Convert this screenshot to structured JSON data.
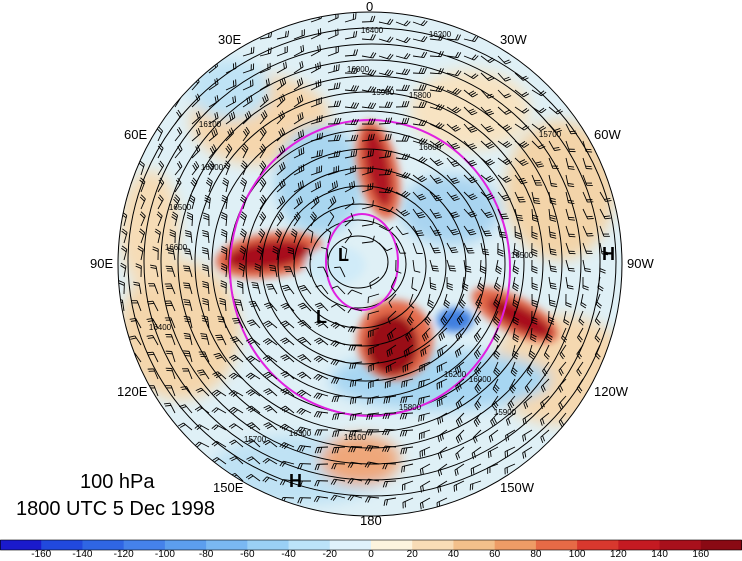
{
  "map": {
    "projection": "polar stereographic (northern hemisphere)",
    "longitude_labels": {
      "top": "0",
      "bottom": "180",
      "upper_left": "30E",
      "upper_right": "30W",
      "mid_upper_left": "60E",
      "mid_upper_right": "60W",
      "left": "90E",
      "right": "90W",
      "mid_lower_left": "120E",
      "mid_lower_right": "120W",
      "lower_left": "150E",
      "lower_right": "150W"
    },
    "pressure_systems": {
      "high_right": "H",
      "high_bottom": "H",
      "low_center": "L",
      "low_lower": "L"
    },
    "contour_labels": [
      "16400",
      "16200",
      "16000",
      "15900",
      "15800",
      "15700",
      "16100",
      "16300",
      "16500",
      "16600"
    ],
    "colors": {
      "magenta_contour": "#e020e0",
      "negative_strong": "#1f3fd0",
      "negative_weak": "#b6e4f4",
      "positive_weak": "#f5d8a8",
      "positive_strong": "#a0101a"
    }
  },
  "caption": {
    "level": "100 hPa",
    "time": "1800 UTC 5 Dec 1998"
  },
  "colorbar": {
    "ticks": [
      "-160",
      "-140",
      "-120",
      "-100",
      "-80",
      "-60",
      "-40",
      "-20",
      "0",
      "20",
      "40",
      "60",
      "80",
      "100",
      "120",
      "140",
      "160"
    ],
    "colors": [
      "#1a1acc",
      "#2149dd",
      "#2f66e4",
      "#4582ea",
      "#5c9eee",
      "#7ab8f2",
      "#9ad0f5",
      "#bce3f8",
      "#dff2fb",
      "#fdf4de",
      "#f8dcb6",
      "#f3c08b",
      "#ee9c66",
      "#e66a46",
      "#d8382e",
      "#c41a22",
      "#a8101c",
      "#8a0a14"
    ]
  }
}
